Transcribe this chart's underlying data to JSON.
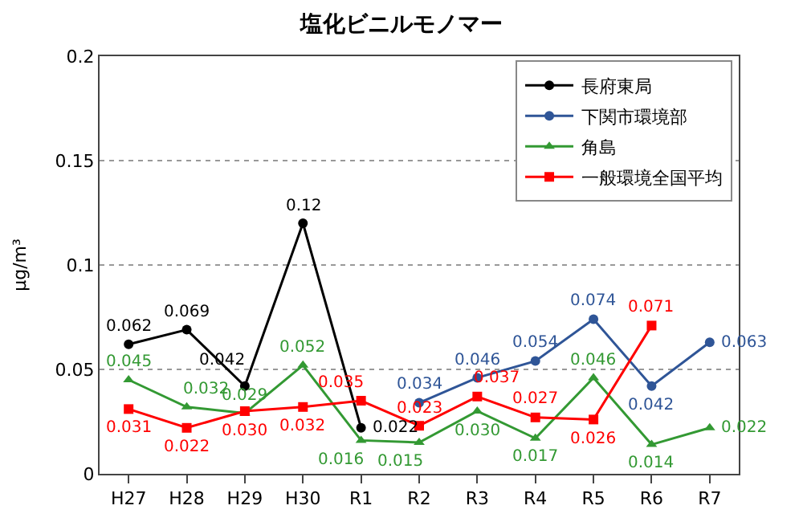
{
  "chart_data": {
    "type": "line",
    "title": "塩化ビニルモノマー",
    "ylabel": "μg/m³",
    "categories": [
      "H27",
      "H28",
      "H29",
      "H30",
      "R1",
      "R2",
      "R3",
      "R4",
      "R5",
      "R6",
      "R7"
    ],
    "series": [
      {
        "name": "長府東局",
        "color": "#000000",
        "marker": "circle",
        "values": [
          0.062,
          0.069,
          0.042,
          0.12,
          0.022,
          null,
          null,
          null,
          null,
          null,
          null
        ],
        "value_labels": [
          "0.062",
          "0.069",
          "0.042",
          "0.12",
          "0.022",
          null,
          null,
          null,
          null,
          null,
          null
        ]
      },
      {
        "name": "下関市環境部",
        "color": "#2f5597",
        "marker": "circle",
        "values": [
          null,
          null,
          null,
          null,
          null,
          0.034,
          0.046,
          0.054,
          0.074,
          0.042,
          0.063
        ],
        "value_labels": [
          null,
          null,
          null,
          null,
          null,
          "0.034",
          "0.046",
          "0.054",
          "0.074",
          "0.042",
          "0.063"
        ]
      },
      {
        "name": "角島",
        "color": "#339933",
        "marker": "triangle",
        "values": [
          0.045,
          0.032,
          0.029,
          0.052,
          0.016,
          0.015,
          0.03,
          0.017,
          0.046,
          0.014,
          0.022
        ],
        "value_labels": [
          "0.045",
          "0.032",
          "0.029",
          "0.052",
          "0.016",
          "0.015",
          "0.030",
          "0.017",
          "0.046",
          "0.014",
          "0.022"
        ]
      },
      {
        "name": "一般環境全国平均",
        "color": "#ff0000",
        "marker": "square",
        "values": [
          0.031,
          0.022,
          0.03,
          0.032,
          0.035,
          0.023,
          0.037,
          0.027,
          0.026,
          0.071,
          null
        ],
        "value_labels": [
          "0.031",
          "0.022",
          "0.030",
          "0.032",
          "0.035",
          "0.023",
          "0.037",
          "0.027",
          "0.026",
          "0.071",
          null
        ]
      }
    ],
    "ylim": [
      0,
      0.2
    ],
    "yticks": [
      0,
      0.05,
      {
        "value": 0.1,
        "label": "0.1"
      },
      0.15,
      {
        "value": 0.2,
        "label": "0.2"
      }
    ],
    "grid": "y",
    "legend": "top right",
    "data_labels": true,
    "line_style": "solid"
  }
}
